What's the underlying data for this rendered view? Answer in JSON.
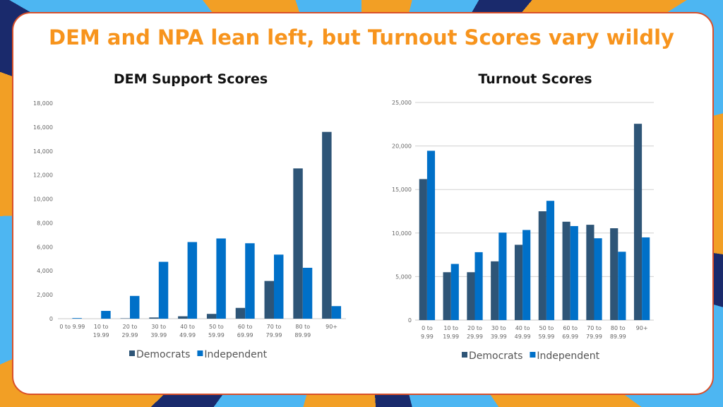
{
  "title": "DEM and NPA lean left, but Turnout Scores vary wildly",
  "colors": {
    "democrats": "#2e5577",
    "independent": "#0070c8",
    "title": "#f7941d",
    "border": "#d9502a"
  },
  "chart_data": [
    {
      "type": "bar",
      "title": "DEM Support Scores",
      "categories": [
        "0 to 9.99",
        "10 to 19.99",
        "20 to 29.99",
        "30 to 39.99",
        "40 to 49.99",
        "50 to 59.99",
        "60 to 69.99",
        "70 to 79.99",
        "80 to 89.99",
        "90+"
      ],
      "series": [
        {
          "name": "Democrats",
          "values": [
            0,
            0,
            30,
            100,
            200,
            400,
            900,
            3150,
            12550,
            15600
          ]
        },
        {
          "name": "Independent",
          "values": [
            50,
            650,
            1900,
            4750,
            6400,
            6700,
            6300,
            5350,
            4250,
            1050
          ]
        }
      ],
      "yticks": [
        "0",
        "2,000",
        "4,000",
        "6,000",
        "8,000",
        "10,000",
        "12,000",
        "14,000",
        "16,000",
        "18,000"
      ],
      "ylim": [
        0,
        18000
      ],
      "grid": false,
      "legend": "bottom"
    },
    {
      "type": "bar",
      "title": "Turnout Scores",
      "categories": [
        "0 to 9.99",
        "10 to 19.99",
        "20 to 29.99",
        "30 to 39.99",
        "40 to 49.99",
        "50 to 59.99",
        "60 to 69.99",
        "70 to 79.99",
        "80 to 89.99",
        "90+"
      ],
      "series": [
        {
          "name": "Democrats",
          "values": [
            16200,
            5500,
            5500,
            6750,
            8650,
            12500,
            11300,
            10950,
            10550,
            22550
          ]
        },
        {
          "name": "Independent",
          "values": [
            19450,
            6450,
            7800,
            10050,
            10350,
            13700,
            10800,
            9400,
            7850,
            9500
          ]
        }
      ],
      "yticks": [
        "0",
        "5,000",
        "10,000",
        "15,000",
        "20,000",
        "25,000"
      ],
      "ylim": [
        0,
        25000
      ],
      "grid": true,
      "legend": "bottom"
    }
  ]
}
